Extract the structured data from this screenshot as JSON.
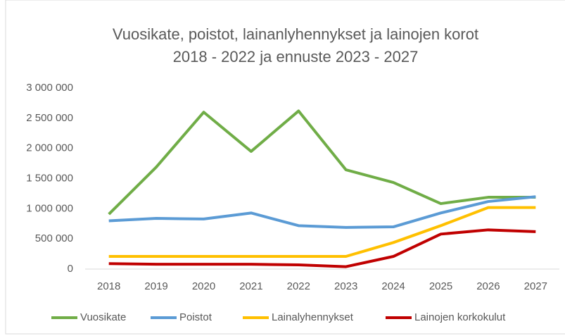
{
  "chart_data": {
    "type": "line",
    "title": [
      "Vuosikate, poistot, lainanlyhennykset ja lainojen korot",
      "2018 - 2022 ja ennuste 2023 - 2027"
    ],
    "categories": [
      "2018",
      "2019",
      "2020",
      "2021",
      "2022",
      "2023",
      "2024",
      "2025",
      "2026",
      "2027"
    ],
    "series": [
      {
        "name": "Vuosikate",
        "color": "#70ad47",
        "values": [
          910000,
          1690000,
          2600000,
          1950000,
          2620000,
          1645000,
          1435000,
          1085000,
          1190000,
          1190000
        ]
      },
      {
        "name": "Poistot",
        "color": "#5b9bd5",
        "values": [
          800000,
          840000,
          830000,
          930000,
          720000,
          690000,
          700000,
          930000,
          1120000,
          1200000
        ]
      },
      {
        "name": "Lainalyhennykset",
        "color": "#ffc000",
        "values": [
          210000,
          210000,
          210000,
          210000,
          210000,
          210000,
          440000,
          720000,
          1020000,
          1020000
        ]
      },
      {
        "name": "Lainojen korkokulut",
        "color": "#c00000",
        "values": [
          90000,
          80000,
          80000,
          80000,
          70000,
          40000,
          210000,
          580000,
          650000,
          620000
        ]
      }
    ],
    "ylim": [
      0,
      3000000
    ],
    "yticks": [
      {
        "value": 0,
        "label": "0"
      },
      {
        "value": 500000,
        "label": "500 000"
      },
      {
        "value": 1000000,
        "label": "1 000 000"
      },
      {
        "value": 1500000,
        "label": "1 500 000"
      },
      {
        "value": 2000000,
        "label": "2 000 000"
      },
      {
        "value": 2500000,
        "label": "2 500 000"
      },
      {
        "value": 3000000,
        "label": "3 000 000"
      }
    ],
    "grid": false,
    "legend": "bottom"
  }
}
